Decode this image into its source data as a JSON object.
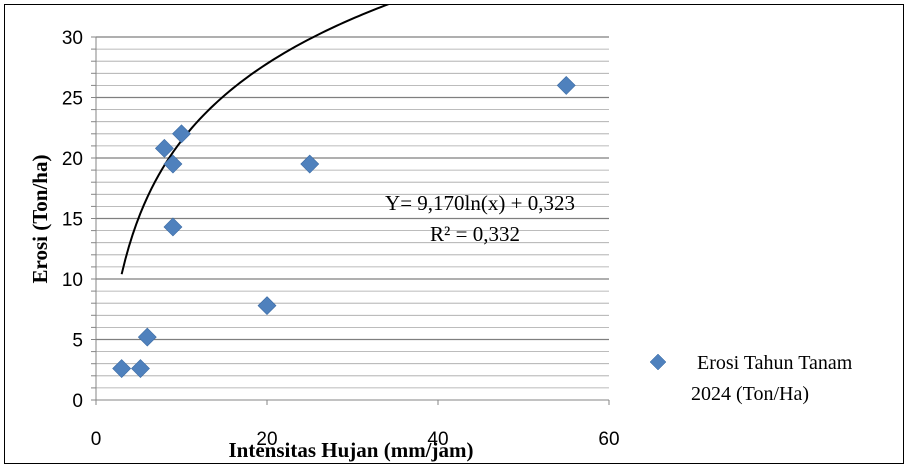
{
  "chart_data": {
    "type": "scatter",
    "xlabel": "Intensitas Hujan (mm/jam)",
    "ylabel": "Erosi (Ton/ha)",
    "xlim": [
      0,
      60
    ],
    "ylim": [
      0,
      30
    ],
    "x_ticks": [
      "0",
      "20",
      "40",
      "60"
    ],
    "y_ticks": [
      "0",
      "5",
      "10",
      "15",
      "20",
      "25",
      "30"
    ],
    "grid": "horizontal every 1 unit",
    "legend_position": "right-bottom",
    "series": [
      {
        "name": "Erosi Tahun Tanam 2024 (Ton/Ha)",
        "color": "#4f81bd",
        "marker": "diamond",
        "points": [
          {
            "x": 3,
            "y": 2.6
          },
          {
            "x": 5.2,
            "y": 2.6
          },
          {
            "x": 6,
            "y": 5.2
          },
          {
            "x": 8,
            "y": 20.8
          },
          {
            "x": 9,
            "y": 19.5
          },
          {
            "x": 9,
            "y": 14.3
          },
          {
            "x": 10,
            "y": 22
          },
          {
            "x": 20,
            "y": 7.8
          },
          {
            "x": 25,
            "y": 19.5
          },
          {
            "x": 55,
            "y": 26
          }
        ]
      }
    ],
    "trendline": {
      "type": "logarithmic",
      "a": 9.17,
      "b": 0.323,
      "x_range": [
        3,
        55
      ],
      "equation_label": "Y= 9,170ln(x) + 0,323",
      "r2_label": "R² = 0,332"
    },
    "legend": {
      "line1": "Erosi Tahun Tanam",
      "line2": "2024 (Ton/Ha)"
    }
  }
}
